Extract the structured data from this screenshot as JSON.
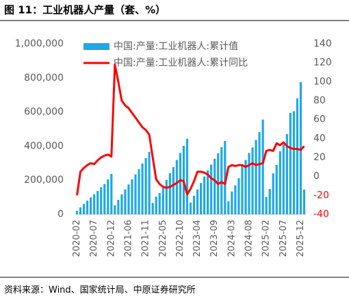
{
  "chart_data": {
    "type": "bar_line",
    "title": "图 11：工业机器人产量（套、%）",
    "source": "资料来源：Wind、国家统计局、中原证券研究所",
    "categories": [
      "2020-02",
      null,
      null,
      null,
      null,
      "2020-07",
      null,
      null,
      null,
      null,
      "2020-12",
      null,
      null,
      null,
      null,
      "2021-06",
      null,
      null,
      null,
      null,
      "2021-11",
      null,
      null,
      null,
      null,
      "2022-05",
      null,
      null,
      null,
      null,
      "2022-10",
      null,
      null,
      null,
      null,
      "2023-04",
      null,
      null,
      null,
      null,
      "2023-09",
      null,
      null,
      null,
      null,
      "2024-03",
      null,
      null,
      null,
      null,
      "2024-08",
      null,
      null,
      null,
      null,
      "2025-02",
      null,
      null,
      null,
      null,
      "2025-07",
      null,
      null,
      null,
      null,
      "2025-12",
      null
    ],
    "series": [
      {
        "name": "中国:产量:工业机器人:累计值",
        "type": "bar",
        "color": "#1ea8e6",
        "values": [
          21000,
          41000,
          61000,
          80000,
          99000,
          118000,
          137000,
          158000,
          178000,
          205000,
          237000,
          53000,
          85000,
          117000,
          146000,
          175000,
          205000,
          234000,
          265000,
          298000,
          330000,
          366000,
          67000,
          104000,
          125000,
          155000,
          202000,
          241000,
          277000,
          319000,
          360000,
          402000,
          443000,
          69000,
          109000,
          146000,
          184000,
          222000,
          258000,
          292000,
          326000,
          358000,
          394000,
          430000,
          76000,
          134000,
          170000,
          212000,
          283000,
          319000,
          360000,
          392000,
          436000,
          483000,
          556000,
          102000,
          148000,
          240000,
          290000,
          370000,
          410000,
          470000,
          595000,
          605000,
          680000,
          775000,
          145000
        ]
      },
      {
        "name": "中国:产量:工业机器人:累计同比",
        "type": "line",
        "axis": "y2",
        "color": "#ff0000",
        "values": [
          -20,
          5,
          9,
          12,
          14,
          13,
          17,
          20,
          22,
          23,
          21,
          118,
          100,
          80,
          75,
          72,
          67,
          62,
          57,
          52,
          49,
          44,
          20,
          -3,
          -8,
          -11,
          -12,
          -11,
          -9,
          -7,
          -4,
          -5,
          -19,
          -13,
          -5,
          5,
          5,
          4,
          2,
          -2,
          -4,
          -8,
          -6,
          -8,
          10,
          12,
          11,
          12,
          12,
          10,
          12,
          14,
          12,
          13,
          14,
          27,
          28,
          27,
          35,
          33,
          36,
          32,
          30,
          29,
          29,
          28,
          32
        ]
      }
    ],
    "ylim": [
      0,
      1000000
    ],
    "yticks": [
      0,
      {
        "value": 200000,
        "label": "200,000"
      },
      {
        "value": 400000,
        "label": "400,000"
      },
      {
        "value": 600000,
        "label": "600,000"
      },
      {
        "value": 800000,
        "label": "800,000"
      },
      {
        "value": 1000000,
        "label": "1,000,000"
      }
    ],
    "y2lim": [
      -40,
      140
    ],
    "y2ticks": [
      -40,
      -20,
      0,
      20,
      40,
      60,
      80,
      100,
      120,
      140
    ],
    "y2_negative_tick_color": "#ff0000",
    "legend": "top-left"
  }
}
